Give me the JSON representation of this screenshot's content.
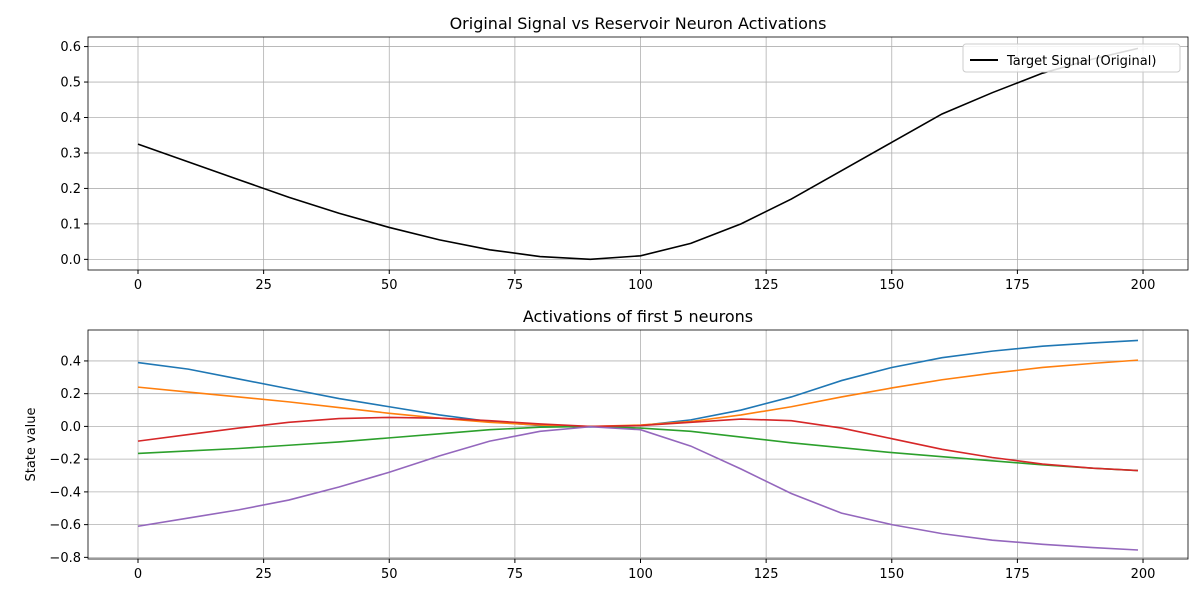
{
  "chart_data": [
    {
      "type": "line",
      "title": "Original Signal vs Reservoir Neuron Activations",
      "x": [
        0,
        10,
        20,
        30,
        40,
        50,
        60,
        70,
        80,
        90,
        100,
        110,
        120,
        130,
        140,
        150,
        160,
        170,
        180,
        190,
        199
      ],
      "series": [
        {
          "name": "Target Signal (Original)",
          "color": "#000000",
          "values": [
            0.325,
            0.275,
            0.225,
            0.175,
            0.13,
            0.09,
            0.055,
            0.027,
            0.008,
            0.0,
            0.01,
            0.045,
            0.1,
            0.17,
            0.25,
            0.33,
            0.41,
            0.47,
            0.525,
            0.565,
            0.595
          ]
        }
      ],
      "xlim": [
        -9.95,
        208.95
      ],
      "xticks": [
        0,
        25,
        50,
        75,
        100,
        125,
        150,
        175,
        200
      ],
      "ylim": [
        -0.03,
        0.627
      ],
      "yticks": [
        {
          "value": 0,
          "label": "0.0"
        },
        0.1,
        0.2,
        0.3,
        0.4,
        0.5,
        0.6
      ],
      "grid": true,
      "legend": "upper-right"
    },
    {
      "type": "line",
      "title": "Activations of first 5 neurons",
      "ylabel": "State value",
      "x": [
        0,
        10,
        20,
        30,
        40,
        50,
        60,
        70,
        80,
        90,
        100,
        110,
        120,
        130,
        140,
        150,
        160,
        170,
        180,
        190,
        199
      ],
      "series": [
        {
          "color": "#1f77b4",
          "values": [
            0.39,
            0.35,
            0.29,
            0.23,
            0.17,
            0.12,
            0.07,
            0.03,
            0.005,
            -0.003,
            0.005,
            0.04,
            0.1,
            0.18,
            0.28,
            0.36,
            0.42,
            0.46,
            0.49,
            0.51,
            0.525
          ]
        },
        {
          "color": "#ff7f0e",
          "values": [
            0.24,
            0.21,
            0.18,
            0.15,
            0.115,
            0.08,
            0.05,
            0.025,
            0.008,
            0.0,
            0.008,
            0.03,
            0.07,
            0.12,
            0.18,
            0.235,
            0.285,
            0.325,
            0.36,
            0.385,
            0.405
          ]
        },
        {
          "color": "#2ca02c",
          "values": [
            -0.165,
            -0.15,
            -0.135,
            -0.115,
            -0.095,
            -0.07,
            -0.045,
            -0.02,
            -0.005,
            0.0,
            -0.01,
            -0.03,
            -0.065,
            -0.1,
            -0.13,
            -0.16,
            -0.185,
            -0.21,
            -0.235,
            -0.255,
            -0.27
          ]
        },
        {
          "color": "#d62728",
          "values": [
            -0.09,
            -0.05,
            -0.01,
            0.025,
            0.048,
            0.055,
            0.05,
            0.035,
            0.015,
            0.0,
            0.005,
            0.025,
            0.045,
            0.035,
            -0.01,
            -0.075,
            -0.14,
            -0.19,
            -0.23,
            -0.255,
            -0.27
          ]
        },
        {
          "color": "#9467bd",
          "values": [
            -0.61,
            -0.56,
            -0.51,
            -0.45,
            -0.37,
            -0.28,
            -0.18,
            -0.09,
            -0.03,
            -0.002,
            -0.02,
            -0.12,
            -0.26,
            -0.41,
            -0.53,
            -0.6,
            -0.655,
            -0.695,
            -0.72,
            -0.74,
            -0.755
          ]
        }
      ],
      "xlim": [
        -9.95,
        208.95
      ],
      "xticks": [
        0,
        25,
        50,
        75,
        100,
        125,
        150,
        175,
        200
      ],
      "ylim": [
        -0.81,
        0.589
      ],
      "yticks": [
        {
          "value": -0.8,
          "label": "−0.8"
        },
        {
          "value": -0.6,
          "label": "−0.6"
        },
        {
          "value": -0.4,
          "label": "−0.4"
        },
        {
          "value": -0.2,
          "label": "−0.2"
        },
        {
          "value": 0,
          "label": "0.0"
        },
        0.2,
        0.4
      ],
      "grid": true
    }
  ]
}
